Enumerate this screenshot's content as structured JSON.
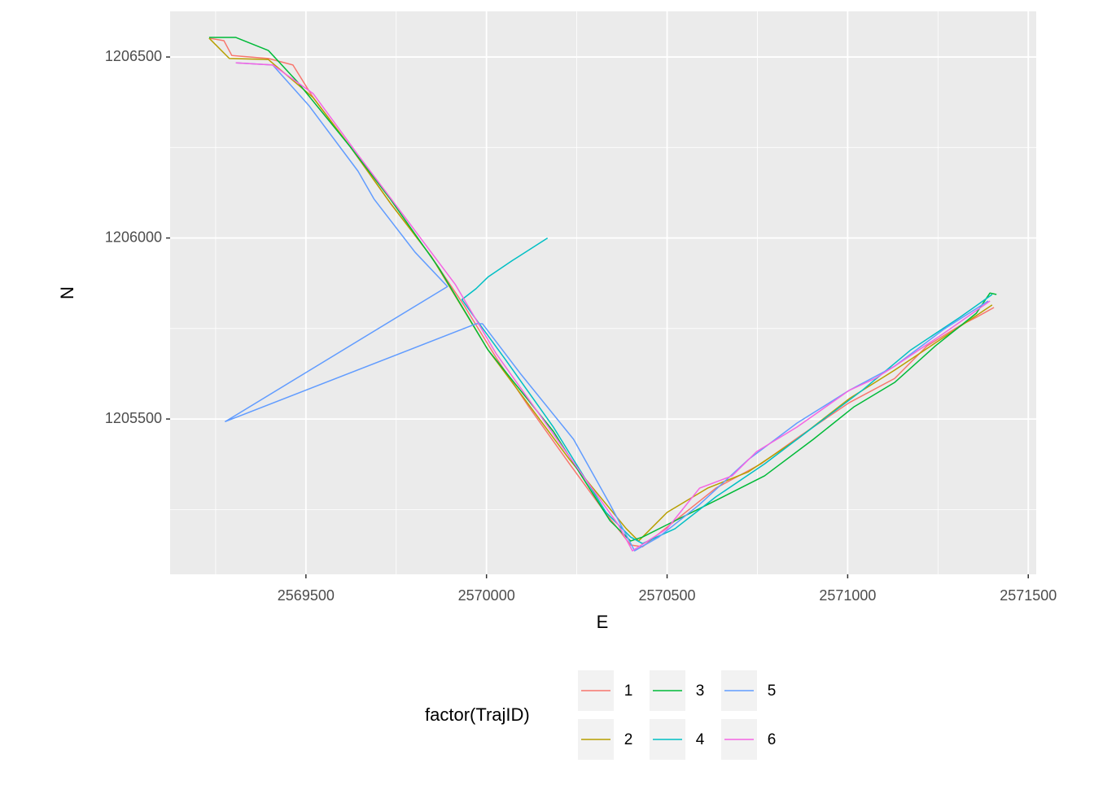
{
  "chart_data": {
    "type": "line",
    "x_label": "E",
    "y_label": "N",
    "legend_title": "factor(TrajID)",
    "legend_position": "bottom",
    "xlim": [
      2569124,
      2571522
    ],
    "ylim": [
      1205071,
      1206626
    ],
    "xticks": [
      2569500,
      2570000,
      2570500,
      2571000,
      2571500
    ],
    "yticks": [
      1205500,
      1206000,
      1206500
    ],
    "x_minor_grid": [
      2569250,
      2569750,
      2570250,
      2570750,
      2571250
    ],
    "y_minor_grid": [
      1205250,
      1205750,
      1206250
    ],
    "grid": true,
    "panel_color": "#ebebeb",
    "series": [
      {
        "name": "1",
        "color": "#F8766D",
        "x": [
          2569232,
          2569273,
          2569295,
          2569396,
          2569464,
          2569520,
          2569622,
          2569734,
          2569847,
          2569937,
          2570027,
          2570117,
          2570230,
          2570320,
          2570399,
          2570432,
          2570522,
          2570635,
          2570760,
          2570871,
          2571004,
          2571130,
          2571220,
          2571311,
          2571356,
          2571405
        ],
        "values": [
          1206552,
          1206545,
          1206504,
          1206496,
          1206478,
          1206388,
          1206253,
          1206096,
          1205949,
          1205815,
          1205669,
          1205534,
          1205376,
          1205253,
          1205152,
          1205147,
          1205219,
          1205309,
          1205376,
          1205455,
          1205545,
          1205612,
          1205702,
          1205758,
          1205781,
          1205808
        ]
      },
      {
        "name": "2",
        "color": "#B79F00",
        "x": [
          2569232,
          2569288,
          2569396,
          2569520,
          2569622,
          2569734,
          2569847,
          2570004,
          2570230,
          2570387,
          2570421,
          2570500,
          2570612,
          2570725,
          2570860,
          2571004,
          2571130,
          2571265,
          2571400
        ],
        "values": [
          1206552,
          1206496,
          1206493,
          1206388,
          1206253,
          1206096,
          1205949,
          1205691,
          1205388,
          1205197,
          1205163,
          1205242,
          1205309,
          1205354,
          1205444,
          1205556,
          1205635,
          1205725,
          1205815
        ]
      },
      {
        "name": "3",
        "color": "#00BA38",
        "x": [
          2569232,
          2569306,
          2569396,
          2569475,
          2569622,
          2569734,
          2569869,
          2570004,
          2570185,
          2570342,
          2570399,
          2570432,
          2570522,
          2570635,
          2570770,
          2570905,
          2571018,
          2571130,
          2571243,
          2571356,
          2571394,
          2571412
        ],
        "values": [
          1206554,
          1206554,
          1206518,
          1206433,
          1206253,
          1206107,
          1205916,
          1205691,
          1205466,
          1205219,
          1205163,
          1205174,
          1205219,
          1205275,
          1205343,
          1205444,
          1205534,
          1205601,
          1205702,
          1205792,
          1205848,
          1205844
        ]
      },
      {
        "name": "4",
        "color": "#00BFC4",
        "x": [
          2570169,
          2570072,
          2570005,
          2569971,
          2569932,
          2569959,
          2570049,
          2570185,
          2570331,
          2570399,
          2570432,
          2570522,
          2570635,
          2570770,
          2570905,
          2571040,
          2571175,
          2571311,
          2571400
        ],
        "values": [
          1206000,
          1205938,
          1205893,
          1205860,
          1205830,
          1205792,
          1205669,
          1205478,
          1205242,
          1205174,
          1205156,
          1205197,
          1205285,
          1205376,
          1205478,
          1205579,
          1205691,
          1205781,
          1205844
        ]
      },
      {
        "name": "5",
        "color": "#619CFF",
        "x": [
          2569306,
          2569408,
          2569509,
          2569644,
          2569689,
          2569802,
          2569892,
          2569277,
          2569971,
          2569989,
          2570095,
          2570241,
          2570342,
          2570410,
          2570477,
          2570590,
          2570725,
          2570860,
          2571004,
          2571130,
          2571265,
          2571389
        ],
        "values": [
          1206484,
          1206478,
          1206365,
          1206185,
          1206107,
          1205961,
          1205866,
          1205493,
          1205763,
          1205763,
          1205624,
          1205444,
          1205264,
          1205136,
          1205174,
          1205264,
          1205388,
          1205489,
          1205579,
          1205646,
          1205747,
          1205826
        ]
      },
      {
        "name": "6",
        "color": "#F564E3",
        "x": [
          2569306,
          2569408,
          2569520,
          2569644,
          2569779,
          2569914,
          2570027,
          2570140,
          2570275,
          2570365,
          2570404,
          2570500,
          2570590,
          2570680,
          2570748,
          2570860,
          2571004,
          2571076,
          2571130,
          2571265,
          2571394
        ],
        "values": [
          1206484,
          1206478,
          1206399,
          1206230,
          1206051,
          1205871,
          1205680,
          1205522,
          1205332,
          1205208,
          1205136,
          1205197,
          1205309,
          1205343,
          1205410,
          1205478,
          1205579,
          1205612,
          1205646,
          1205736,
          1205826
        ]
      }
    ]
  }
}
